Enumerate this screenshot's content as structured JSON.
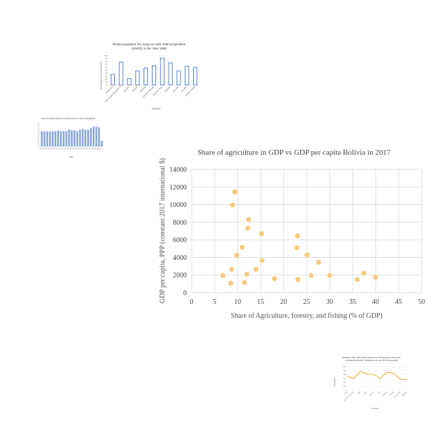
{
  "chart_data": [
    {
      "id": "rural",
      "type": "bar",
      "title": "Rural population (%) long-run with 2050 projections (OWID) in the Year 1959",
      "xlabel": "Country",
      "ylabel": "Percentage of Rural Population",
      "categories": [
        "Cambodia",
        "Democratic Republic of",
        "Vanuatu",
        "Malawi",
        "Rwanda",
        "Solomon Islands",
        "Burkina Faso",
        "Eswatini",
        "Burundi",
        "Lesotho",
        "Eastern Africa"
      ],
      "values": [
        36,
        78,
        22,
        48,
        58,
        66,
        92,
        76,
        48,
        64,
        60
      ],
      "ylim": [
        0,
        100
      ],
      "color": "#4472c4"
    },
    {
      "id": "diet",
      "type": "bar",
      "title": "Share of calories allocated to animal food from, 2000 to Bangladesh",
      "xlabel": "Year",
      "ylabel": "",
      "categories": [
        "1961",
        "1963",
        "1965",
        "1967",
        "1969",
        "1971",
        "1973",
        "1975",
        "1977",
        "1979",
        "1981",
        "1983",
        "1985",
        "1987",
        "1989",
        "1991",
        "1993",
        "1995",
        "1997",
        "1999",
        "2001",
        "2003",
        "2005"
      ],
      "values": [
        1.9,
        1.9,
        1.9,
        1.9,
        1.9,
        1.9,
        2.0,
        1.9,
        1.9,
        1.9,
        2.1,
        2.0,
        2.0,
        1.9,
        2.1,
        2.2,
        2.1,
        2.1,
        2.3,
        2.5,
        2.5,
        2.4,
        0.7
      ],
      "ylim": [
        0,
        3
      ],
      "color": "#8ea9db"
    },
    {
      "id": "main",
      "type": "scatter",
      "title": "Share of agriculture in GDP vs GDP per capita Bolivia in 2017",
      "xlabel": "Share of Agriculture, forestry, and fishing (% of GDP)",
      "ylabel": "GDP per capita, PPP (constant 2017 international $)",
      "xlim": [
        0,
        50
      ],
      "ylim": [
        0,
        14000
      ],
      "xticks": [
        0,
        5,
        10,
        15,
        20,
        25,
        30,
        35,
        40,
        45,
        50
      ],
      "yticks": [
        0,
        2000,
        4000,
        6000,
        8000,
        10000,
        12000,
        14000
      ],
      "grid": true,
      "color": "#f6cc7e",
      "points": [
        {
          "x": 6.8,
          "y": 1950
        },
        {
          "x": 8.5,
          "y": 1050
        },
        {
          "x": 8.7,
          "y": 2650
        },
        {
          "x": 8.9,
          "y": 9950
        },
        {
          "x": 9.4,
          "y": 11450
        },
        {
          "x": 9.8,
          "y": 4250
        },
        {
          "x": 11.0,
          "y": 5150
        },
        {
          "x": 11.5,
          "y": 1150
        },
        {
          "x": 12.0,
          "y": 2100
        },
        {
          "x": 12.2,
          "y": 7300
        },
        {
          "x": 12.4,
          "y": 8300
        },
        {
          "x": 14.0,
          "y": 2650
        },
        {
          "x": 15.2,
          "y": 6700
        },
        {
          "x": 15.3,
          "y": 3650
        },
        {
          "x": 18.0,
          "y": 1600
        },
        {
          "x": 22.9,
          "y": 5100
        },
        {
          "x": 23.0,
          "y": 6450
        },
        {
          "x": 23.1,
          "y": 1500
        },
        {
          "x": 25.1,
          "y": 4300
        },
        {
          "x": 26.0,
          "y": 1950
        },
        {
          "x": 27.6,
          "y": 3450
        },
        {
          "x": 30.0,
          "y": 1950
        },
        {
          "x": 36.0,
          "y": 1500
        },
        {
          "x": 37.4,
          "y": 2200
        },
        {
          "x": 40.0,
          "y": 1750
        }
      ]
    },
    {
      "id": "pop",
      "type": "line",
      "title": "Estimates, 1950 - 2020: Total population by broad age group, both sexes combined (thousands) - Population under age 15 in the year 2000",
      "xlabel": "Country",
      "ylabel": "Population",
      "categories": [
        "Chad",
        "Dominican Republic",
        "Haiti",
        "Jordan",
        "Lebanon",
        "Libya",
        "Paraguay",
        "Senegal",
        "Sierra Leone",
        "Tajikistan"
      ],
      "values": [
        3600,
        3000,
        4800,
        4100,
        4000,
        3000,
        4600,
        4300,
        2800,
        2700
      ],
      "ylim": [
        0,
        6000
      ],
      "color": "#e0b23a"
    }
  ]
}
